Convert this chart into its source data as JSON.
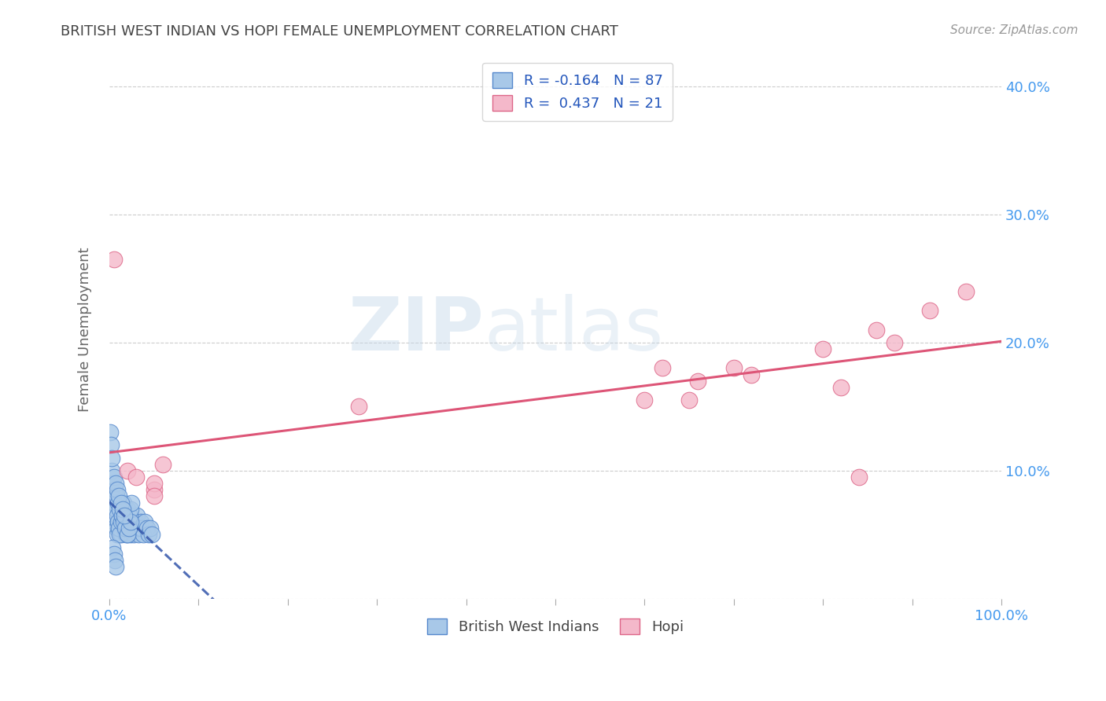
{
  "title": "BRITISH WEST INDIAN VS HOPI FEMALE UNEMPLOYMENT CORRELATION CHART",
  "source": "Source: ZipAtlas.com",
  "ylabel": "Female Unemployment",
  "watermark_zip": "ZIP",
  "watermark_atlas": "atlas",
  "xlim": [
    0,
    1.0
  ],
  "ylim": [
    0,
    0.42
  ],
  "yticks": [
    0.0,
    0.1,
    0.2,
    0.3,
    0.4
  ],
  "yticklabels_right": [
    "",
    "10.0%",
    "20.0%",
    "30.0%",
    "40.0%"
  ],
  "blue_R": -0.164,
  "blue_N": 87,
  "pink_R": 0.437,
  "pink_N": 21,
  "legend_label_blue": "British West Indians",
  "legend_label_pink": "Hopi",
  "blue_color": "#a8c8e8",
  "blue_edge": "#5588cc",
  "pink_color": "#f4b8ca",
  "pink_edge": "#dd6688",
  "blue_line_color": "#3355aa",
  "pink_line_color": "#dd5577",
  "blue_scatter_x": [
    0.003,
    0.004,
    0.005,
    0.006,
    0.007,
    0.008,
    0.009,
    0.01,
    0.011,
    0.012,
    0.013,
    0.014,
    0.015,
    0.016,
    0.017,
    0.018,
    0.019,
    0.02,
    0.021,
    0.022,
    0.023,
    0.024,
    0.025,
    0.026,
    0.027,
    0.028,
    0.029,
    0.03,
    0.031,
    0.032,
    0.033,
    0.034,
    0.035,
    0.036,
    0.038,
    0.04,
    0.042,
    0.044,
    0.046,
    0.048,
    0.002,
    0.003,
    0.005,
    0.007,
    0.009,
    0.01,
    0.011,
    0.012,
    0.013,
    0.014,
    0.015,
    0.016,
    0.017,
    0.018,
    0.019,
    0.02,
    0.021,
    0.022,
    0.023,
    0.024,
    0.025,
    0.004,
    0.006,
    0.008,
    0.01,
    0.012,
    0.014,
    0.016,
    0.018,
    0.02,
    0.022,
    0.024,
    0.003,
    0.005,
    0.007,
    0.009,
    0.011,
    0.013,
    0.015,
    0.017,
    0.001,
    0.002,
    0.003,
    0.004,
    0.005,
    0.006,
    0.007
  ],
  "blue_scatter_y": [
    0.07,
    0.075,
    0.06,
    0.065,
    0.08,
    0.055,
    0.05,
    0.06,
    0.055,
    0.065,
    0.05,
    0.06,
    0.07,
    0.055,
    0.06,
    0.065,
    0.05,
    0.07,
    0.06,
    0.065,
    0.055,
    0.05,
    0.06,
    0.055,
    0.05,
    0.06,
    0.055,
    0.06,
    0.065,
    0.055,
    0.05,
    0.055,
    0.06,
    0.055,
    0.05,
    0.06,
    0.055,
    0.05,
    0.055,
    0.05,
    0.085,
    0.08,
    0.075,
    0.07,
    0.065,
    0.06,
    0.055,
    0.05,
    0.06,
    0.065,
    0.07,
    0.075,
    0.065,
    0.06,
    0.055,
    0.05,
    0.06,
    0.055,
    0.065,
    0.07,
    0.075,
    0.09,
    0.085,
    0.08,
    0.075,
    0.07,
    0.065,
    0.06,
    0.055,
    0.05,
    0.055,
    0.06,
    0.1,
    0.095,
    0.09,
    0.085,
    0.08,
    0.075,
    0.07,
    0.065,
    0.13,
    0.12,
    0.11,
    0.04,
    0.035,
    0.03,
    0.025
  ],
  "pink_scatter_x": [
    0.005,
    0.02,
    0.03,
    0.05,
    0.05,
    0.05,
    0.06,
    0.28,
    0.6,
    0.62,
    0.65,
    0.66,
    0.7,
    0.72,
    0.8,
    0.82,
    0.84,
    0.86,
    0.88,
    0.92,
    0.96
  ],
  "pink_scatter_y": [
    0.265,
    0.1,
    0.095,
    0.085,
    0.09,
    0.08,
    0.105,
    0.15,
    0.155,
    0.18,
    0.155,
    0.17,
    0.18,
    0.175,
    0.195,
    0.165,
    0.095,
    0.21,
    0.2,
    0.225,
    0.24
  ],
  "background_color": "#ffffff",
  "plot_bg_color": "#ffffff",
  "grid_color": "#cccccc",
  "title_color": "#444444",
  "axis_label_color": "#666666",
  "tick_color": "#4499ee"
}
